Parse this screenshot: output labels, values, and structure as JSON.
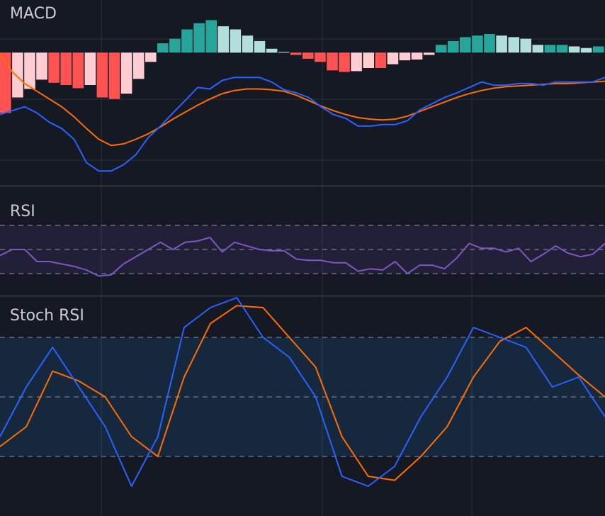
{
  "colors": {
    "background": "#151924",
    "grid": "#2a2e39",
    "separator": "#2f3341",
    "macd_line": "#2962ff",
    "signal_line": "#ff6d00",
    "hist_up_strong": "#26a69a",
    "hist_up_weak": "#b2dfdb",
    "hist_down_strong": "#ff5252",
    "hist_down_weak": "#ffcdd2",
    "rsi_line": "#7e57c2",
    "rsi_band": "#7e57c2",
    "stoch_k": "#2962ff",
    "stoch_d": "#ff6d00",
    "stoch_band": "#2196f3",
    "level_line": "#787b86",
    "title_text": "#c9ccd4"
  },
  "panes": {
    "macd": {
      "title": "MACD"
    },
    "rsi": {
      "title": "RSI"
    },
    "stoch": {
      "title": "Stoch RSI"
    }
  },
  "chart_data": [
    {
      "type": "line",
      "title": "MACD",
      "bar_count": 50,
      "ylim": [
        -1.72,
        0.68
      ],
      "series": [
        {
          "kind": "histogram",
          "values": [
            -0.78,
            -0.58,
            -0.47,
            -0.35,
            -0.39,
            -0.42,
            -0.46,
            -0.42,
            -0.58,
            -0.6,
            -0.53,
            -0.34,
            -0.12,
            0.12,
            0.18,
            0.3,
            0.38,
            0.42,
            0.34,
            0.3,
            0.22,
            0.15,
            0.05,
            0.01,
            -0.03,
            -0.08,
            -0.12,
            -0.23,
            -0.25,
            -0.24,
            -0.2,
            -0.2,
            -0.15,
            -0.1,
            -0.09,
            -0.03,
            0.1,
            0.15,
            0.2,
            0.22,
            0.24,
            0.22,
            0.2,
            0.18,
            0.1,
            0.1,
            0.1,
            0.08,
            0.06,
            0.08
          ]
        },
        {
          "kind": "macd",
          "values": [
            -0.8,
            -0.75,
            -0.7,
            -0.78,
            -0.9,
            -0.98,
            -1.12,
            -1.42,
            -1.53,
            -1.53,
            -1.45,
            -1.32,
            -1.1,
            -0.95,
            -0.78,
            -0.62,
            -0.45,
            -0.47,
            -0.36,
            -0.32,
            -0.32,
            -0.32,
            -0.38,
            -0.48,
            -0.52,
            -0.58,
            -0.7,
            -0.8,
            -0.85,
            -0.95,
            -0.95,
            -0.93,
            -0.93,
            -0.88,
            -0.74,
            -0.66,
            -0.58,
            -0.52,
            -0.45,
            -0.38,
            -0.42,
            -0.42,
            -0.4,
            -0.4,
            -0.42,
            -0.38,
            -0.38,
            -0.38,
            -0.38,
            -0.32
          ]
        },
        {
          "kind": "signal",
          "values": [
            -0.02,
            -0.25,
            -0.4,
            -0.5,
            -0.6,
            -0.7,
            -0.83,
            -0.98,
            -1.12,
            -1.2,
            -1.18,
            -1.12,
            -1.05,
            -0.96,
            -0.86,
            -0.77,
            -0.68,
            -0.6,
            -0.53,
            -0.49,
            -0.47,
            -0.47,
            -0.48,
            -0.5,
            -0.55,
            -0.62,
            -0.69,
            -0.75,
            -0.8,
            -0.84,
            -0.86,
            -0.87,
            -0.86,
            -0.82,
            -0.76,
            -0.7,
            -0.64,
            -0.58,
            -0.53,
            -0.49,
            -0.46,
            -0.44,
            -0.43,
            -0.42,
            -0.41,
            -0.4,
            -0.4,
            -0.39,
            -0.38,
            -0.37
          ]
        }
      ],
      "grid": true
    },
    {
      "type": "line",
      "title": "RSI",
      "ylim": [
        0,
        100
      ],
      "band": [
        30,
        70
      ],
      "levels": [
        30,
        50,
        70
      ],
      "series": [
        {
          "name": "RSI",
          "values": [
            45,
            50,
            50,
            40,
            40,
            38,
            36,
            33,
            28,
            29,
            38,
            44,
            50,
            56,
            50,
            56,
            57,
            60,
            48,
            56,
            53,
            50,
            49,
            49,
            42,
            41,
            41,
            39,
            39,
            32,
            34,
            33,
            40,
            30,
            37,
            37,
            34,
            43,
            55,
            51,
            51,
            48,
            51,
            40,
            46,
            53,
            47,
            44,
            46,
            55
          ]
        }
      ]
    },
    {
      "type": "line",
      "title": "Stoch RSI",
      "ylim": [
        -10,
        100
      ],
      "band": [
        20,
        80
      ],
      "levels": [
        20,
        50,
        80
      ],
      "series": [
        {
          "name": "K",
          "values": [
            30,
            55,
            75,
            55,
            35,
            5,
            30,
            85,
            95,
            100,
            80,
            70,
            50,
            10,
            5,
            15,
            40,
            60,
            85,
            80,
            75,
            55,
            60,
            40
          ]
        },
        {
          "name": "D",
          "values": [
            25,
            35,
            63,
            58,
            50,
            30,
            20,
            60,
            87,
            96,
            95,
            80,
            65,
            30,
            10,
            8,
            20,
            35,
            60,
            78,
            85,
            73,
            61,
            50
          ]
        }
      ]
    }
  ]
}
